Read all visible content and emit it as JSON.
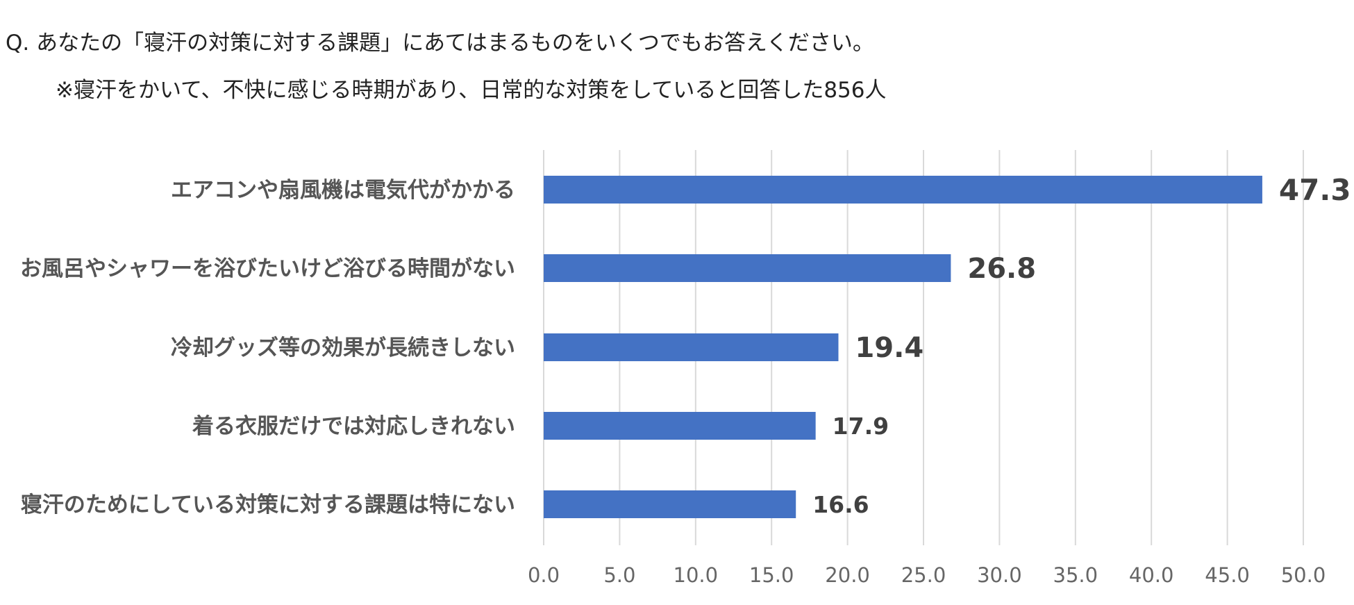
{
  "header": {
    "question": "Q.  あなたの「寝汗の対策に対する課題」にあてはまるものをいくつでもお答えください。",
    "note": "※寝汗をかいて、不快に感じる時期があり、日常的な対策をしていると回答した856人"
  },
  "chart_data": {
    "type": "bar",
    "orientation": "horizontal",
    "categories": [
      "エアコンや扇風機は電気代がかかる",
      "お風呂やシャワーを浴びたいけど浴びる時間がない",
      "冷却グッズ等の効果が長続きしない",
      "着る衣服だけでは対応しきれない",
      "寝汗のためにしている対策に対する課題は特にない"
    ],
    "values": [
      47.3,
      26.8,
      19.4,
      17.9,
      16.6
    ],
    "value_labels": [
      "47.3",
      "26.8",
      "19.4",
      "17.9",
      "16.6"
    ],
    "xlim": [
      0,
      50
    ],
    "ticks": [
      "0.0",
      "5.0",
      "10.0",
      "15.0",
      "20.0",
      "25.0",
      "30.0",
      "35.0",
      "40.0",
      "45.0",
      "50.0"
    ],
    "grid": true,
    "bar_color": "#4472c4",
    "grid_color": "#d9d9d9"
  }
}
